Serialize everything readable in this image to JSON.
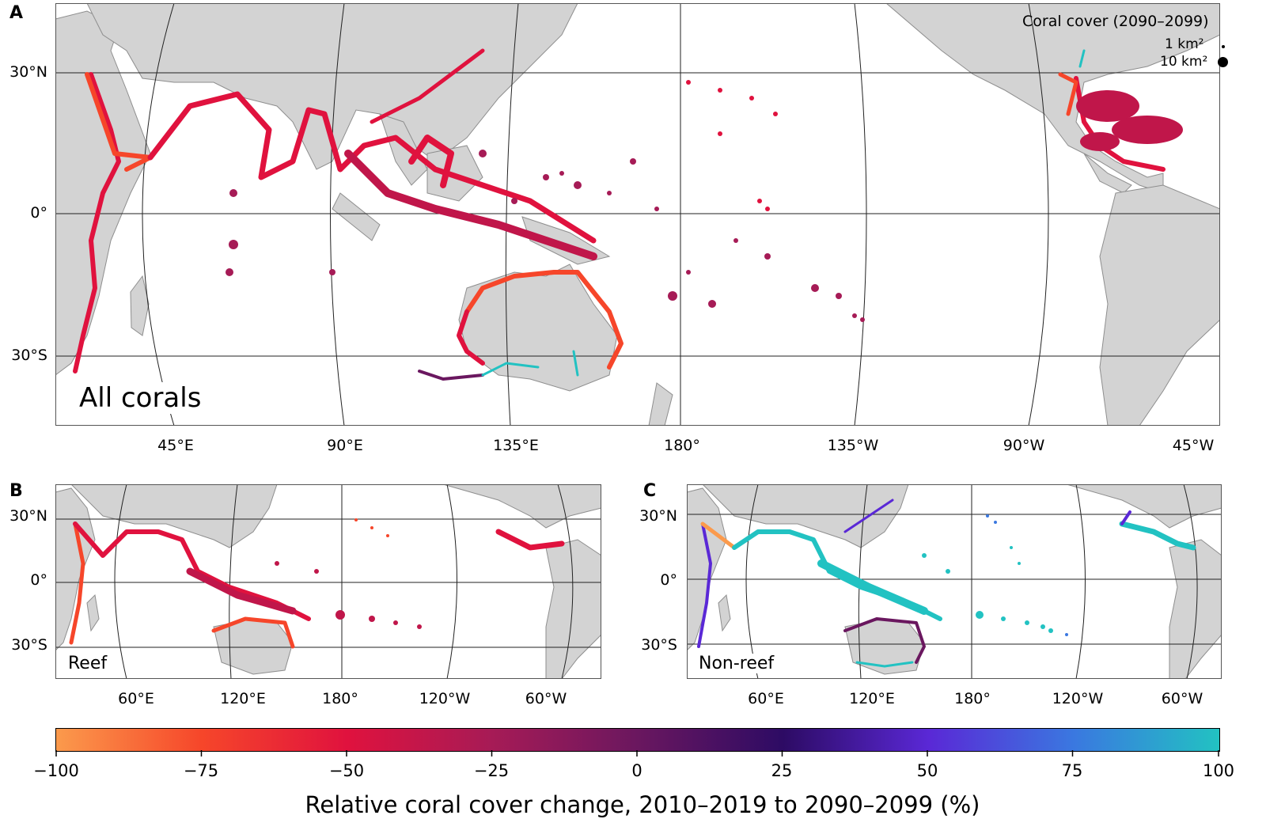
{
  "panels": {
    "a": {
      "letter": "A",
      "label": "All corals",
      "lat_ticks": [
        "30°N",
        "0°",
        "30°S"
      ],
      "lon_ticks": [
        "45°E",
        "90°E",
        "135°E",
        "180°",
        "135°W",
        "90°W",
        "45°W"
      ],
      "legend": {
        "title": "Coral cover (2090–2099)",
        "entries": [
          "1 km²",
          "10 km²"
        ]
      }
    },
    "b": {
      "letter": "B",
      "label": "Reef",
      "lat_ticks": [
        "30°N",
        "0°",
        "30°S"
      ],
      "lon_ticks": [
        "60°E",
        "120°E",
        "180°",
        "120°W",
        "60°W"
      ]
    },
    "c": {
      "letter": "C",
      "label": "Non-reef",
      "lat_ticks": [
        "30°N",
        "0°",
        "30°S"
      ],
      "lon_ticks": [
        "60°E",
        "120°E",
        "180°",
        "120°W",
        "60°W"
      ]
    }
  },
  "colorbar": {
    "ticks": [
      "−100",
      "−75",
      "−50",
      "−25",
      "0",
      "25",
      "50",
      "75",
      "100"
    ],
    "title": "Relative coral cover change, 2010–2019 to 2090–2099 (%)",
    "range": [
      -100,
      100
    ],
    "colors": [
      "#fb9a4c",
      "#f6462a",
      "#e0123e",
      "#a61b56",
      "#6a175f",
      "#2d0b64",
      "#5a28d6",
      "#3a78e0",
      "#22c2c2"
    ]
  },
  "colors": {
    "land": "#d3d3d3",
    "reef_decline": "#e0123e",
    "gain": "#22c2c2"
  }
}
